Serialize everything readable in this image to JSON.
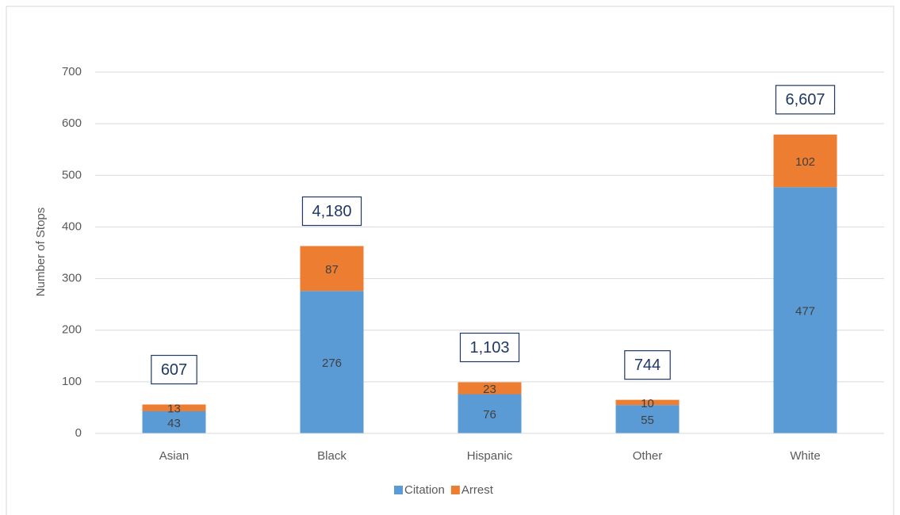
{
  "chart_data": {
    "type": "stacked-bar",
    "y_label": "Number of Stops",
    "categories": [
      "Asian",
      "Black",
      "Hispanic",
      "Other",
      "White"
    ],
    "series": [
      {
        "name": "Citation",
        "color": "#5b9bd5",
        "values": [
          43,
          276,
          76,
          55,
          477
        ]
      },
      {
        "name": "Arrest",
        "color": "#ed7d31",
        "values": [
          13,
          87,
          23,
          10,
          102
        ]
      }
    ],
    "annotations": [
      "607",
      "4,180",
      "1,103",
      "744",
      "6,607"
    ],
    "ylim": [
      0,
      700
    ],
    "yticks": [
      0,
      100,
      200,
      300,
      400,
      500,
      600,
      700
    ],
    "grid": true,
    "legend": "bottom"
  }
}
